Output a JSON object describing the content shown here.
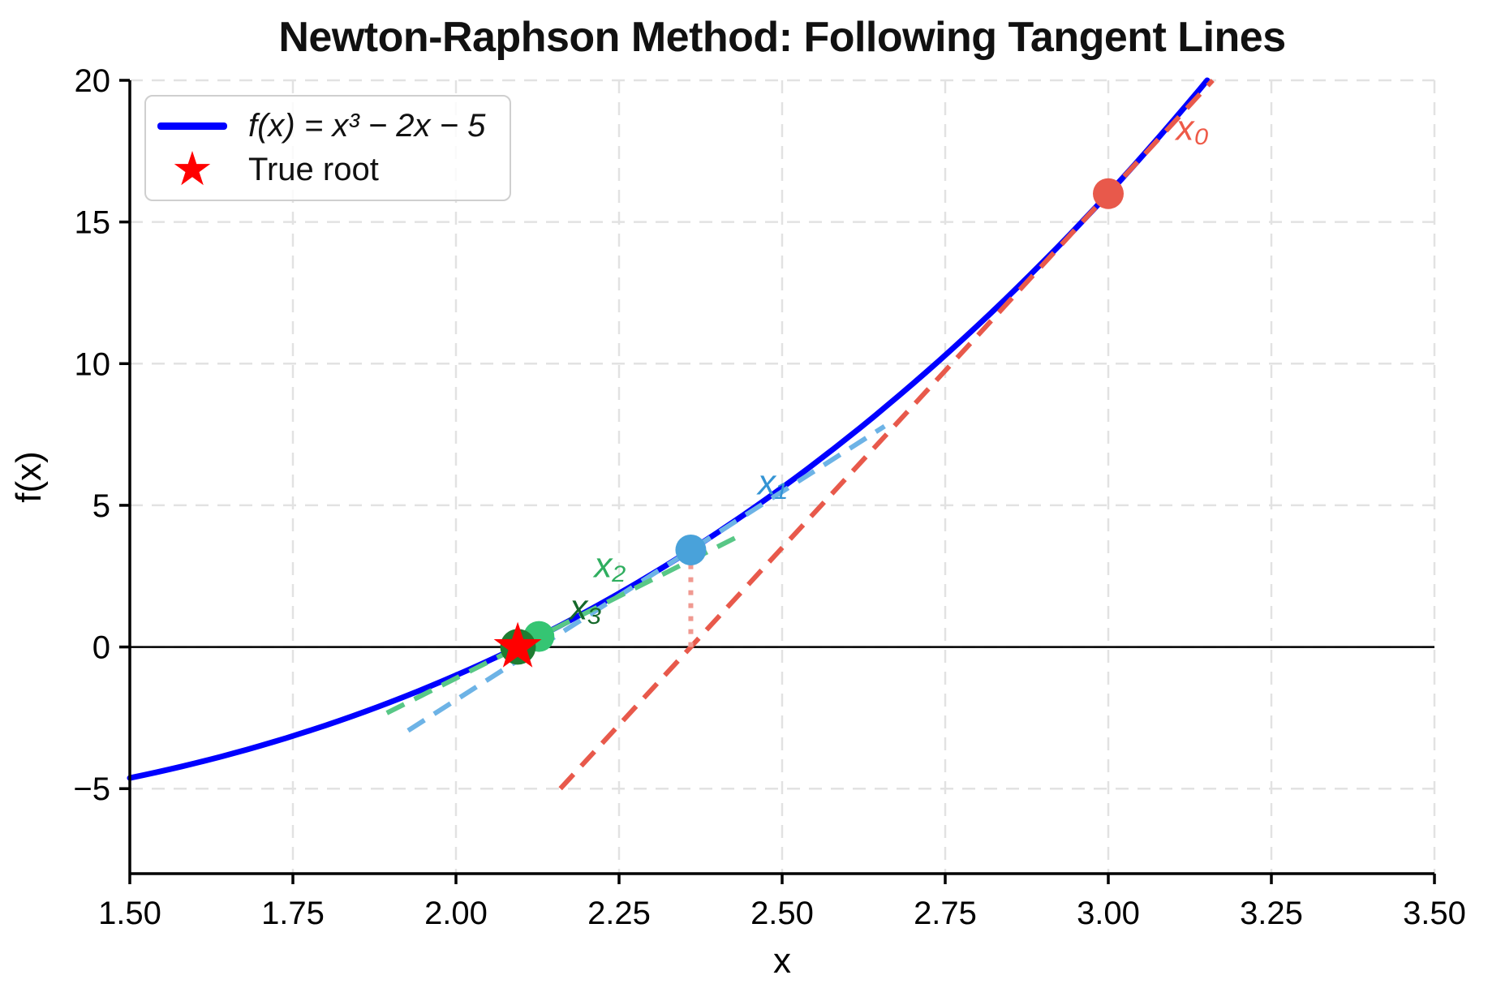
{
  "chart_data": {
    "type": "line",
    "title": "Newton-Raphson Method: Following Tangent Lines",
    "xlabel": "x",
    "ylabel": "f(x)",
    "xlim": [
      1.5,
      3.5
    ],
    "ylim": [
      -8,
      20
    ],
    "x_tick_values": [
      1.5,
      1.75,
      2.0,
      2.25,
      2.5,
      2.75,
      3.0,
      3.25,
      3.5
    ],
    "x_tick_labels": [
      "1.50",
      "1.75",
      "2.00",
      "2.25",
      "2.50",
      "2.75",
      "3.00",
      "3.25",
      "3.50"
    ],
    "y_tick_values": [
      20,
      15,
      10,
      5,
      0,
      -5
    ],
    "y_tick_labels": [
      "20",
      "15",
      "10",
      "5",
      "0",
      "−5"
    ],
    "grid": {
      "show": true,
      "color": "#e2e2e2"
    },
    "zero_line": {
      "y": 0,
      "color": "#000000"
    },
    "curve": {
      "label": "f(x) = x³ − 2x − 5",
      "formula_poly_coeffs": [
        1,
        0,
        -2,
        -5
      ],
      "color": "#0000ff",
      "x_start": 1.5,
      "x_end": 3.5,
      "clip_y_max": 20
    },
    "legend": {
      "items": [
        {
          "marker": "line",
          "color": "#0000ff",
          "label": "f(x) = x³ − 2x − 5"
        },
        {
          "marker": "star",
          "color": "#ff0000",
          "label": "True root"
        }
      ]
    },
    "iterations": [
      {
        "name": "x₀",
        "x": 3.0,
        "fx": 16.0,
        "dot_color": "#e8594b",
        "label_color": "#ee5a48",
        "label_at": [
          3.129,
          18.3
        ]
      },
      {
        "name": "x₁",
        "x": 2.36,
        "fx": 3.4243,
        "dot_color": "#49a2da",
        "label_color": "#3494d4",
        "label_at": [
          2.485,
          5.78
        ]
      },
      {
        "name": "x₂",
        "x": 2.1272,
        "fx": 0.3716,
        "dot_color": "#35c573",
        "label_color": "#2fae5f",
        "label_at": [
          2.236,
          2.86
        ]
      },
      {
        "name": "x₃",
        "x": 2.0951,
        "fx": 0.0061,
        "dot_color": "#1e7d32",
        "label_color": "#15682a",
        "label_at": [
          2.199,
          1.37
        ]
      }
    ],
    "tangent_lines": [
      {
        "at": "x₀",
        "x1": 2.16,
        "y1": -5.0,
        "x2": 3.16,
        "y2": 20.0,
        "color": "#e8594b"
      },
      {
        "at": "x₁",
        "x1": 1.9266,
        "y1": -2.95,
        "x2": 2.657,
        "y2": 7.79,
        "color": "#6db3e6"
      },
      {
        "at": "x₂",
        "x1": 1.894,
        "y1": -2.33,
        "x2": 2.435,
        "y2": 3.93,
        "color": "#58c786"
      }
    ],
    "drop_line": {
      "x": 2.36,
      "y_from": 0.0,
      "y_to": 3.4243,
      "color": "#f09a91"
    },
    "true_root": {
      "x": 2.0946,
      "y": 0.0,
      "color": "#ff0000"
    }
  }
}
